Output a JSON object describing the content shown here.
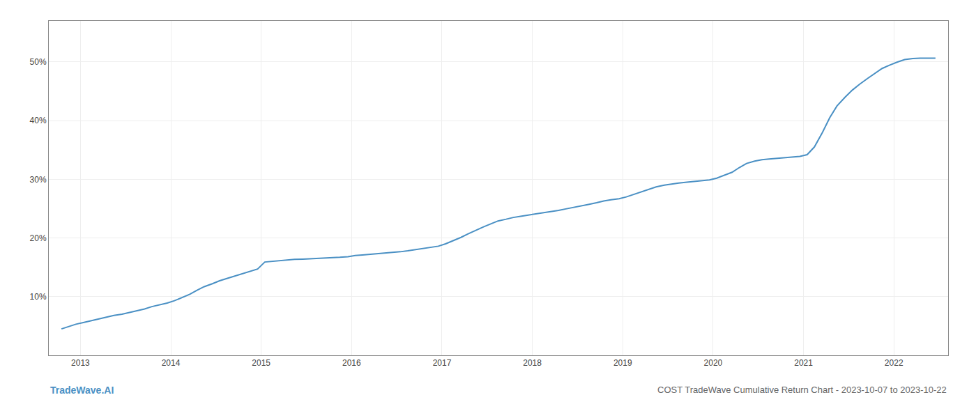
{
  "chart_data": {
    "type": "line",
    "title": "COST TradeWave Cumulative Return Chart - 2023-10-07 to 2023-10-22",
    "annotations": [
      "TradeWave.AI"
    ],
    "color": "#4a90c4",
    "grid": true,
    "x": [
      2012.79,
      2012.87,
      2012.95,
      2013.04,
      2013.12,
      2013.21,
      2013.29,
      2013.37,
      2013.46,
      2013.54,
      2013.62,
      2013.71,
      2013.79,
      2013.87,
      2013.96,
      2014.04,
      2014.12,
      2014.21,
      2014.29,
      2014.37,
      2014.46,
      2014.54,
      2014.62,
      2014.71,
      2014.79,
      2014.87,
      2014.96,
      2015.04,
      2015.12,
      2015.21,
      2015.29,
      2015.37,
      2015.46,
      2015.54,
      2015.62,
      2015.71,
      2015.79,
      2015.87,
      2015.96,
      2016.04,
      2016.12,
      2016.21,
      2016.29,
      2016.37,
      2016.46,
      2016.54,
      2016.62,
      2016.71,
      2016.79,
      2016.87,
      2016.96,
      2017.04,
      2017.12,
      2017.21,
      2017.29,
      2017.37,
      2017.46,
      2017.54,
      2017.62,
      2017.71,
      2017.79,
      2017.87,
      2017.96,
      2018.04,
      2018.12,
      2018.21,
      2018.29,
      2018.37,
      2018.46,
      2018.54,
      2018.62,
      2018.71,
      2018.79,
      2018.87,
      2018.96,
      2019.04,
      2019.12,
      2019.21,
      2019.29,
      2019.37,
      2019.46,
      2019.54,
      2019.62,
      2019.71,
      2019.79,
      2019.87,
      2019.96,
      2020.04,
      2020.12,
      2020.21,
      2020.29,
      2020.37,
      2020.46,
      2020.54,
      2020.62,
      2020.71,
      2020.79,
      2020.87,
      2020.96,
      2021.04,
      2021.12,
      2021.21,
      2021.29,
      2021.37,
      2021.46,
      2021.54,
      2021.62,
      2021.71,
      2021.79,
      2021.87,
      2021.96,
      2022.04,
      2022.12,
      2022.21,
      2022.29,
      2022.37,
      2022.46
    ],
    "values": [
      4.5,
      4.9,
      5.3,
      5.6,
      5.9,
      6.2,
      6.5,
      6.8,
      7.0,
      7.3,
      7.6,
      7.9,
      8.3,
      8.6,
      8.9,
      9.3,
      9.8,
      10.4,
      11.1,
      11.7,
      12.2,
      12.7,
      13.1,
      13.5,
      13.9,
      14.3,
      14.7,
      15.9,
      16.0,
      16.2,
      16.3,
      16.35,
      16.4,
      16.45,
      16.5,
      16.55,
      16.6,
      16.7,
      16.8,
      17.0,
      17.1,
      17.2,
      17.3,
      17.4,
      17.55,
      17.65,
      17.8,
      18.0,
      18.2,
      18.4,
      18.6,
      19.0,
      19.5,
      20.1,
      20.7,
      21.3,
      21.9,
      22.4,
      22.9,
      23.2,
      23.5,
      23.7,
      23.9,
      24.1,
      24.3,
      24.5,
      24.7,
      24.95,
      25.2,
      25.45,
      25.7,
      26.0,
      26.3,
      26.5,
      26.7,
      27.0,
      27.4,
      27.9,
      28.3,
      28.7,
      29.0,
      29.2,
      29.35,
      29.5,
      29.6,
      29.75,
      29.9,
      30.2,
      30.7,
      31.2,
      32.0,
      32.7,
      33.1,
      33.35,
      33.45,
      33.55,
      33.65,
      33.75,
      33.9,
      34.2,
      35.5,
      38.0,
      40.5,
      42.5,
      44.0,
      45.2,
      46.2,
      47.2,
      48.1,
      48.9,
      49.5,
      50.0,
      50.4,
      50.6,
      50.65,
      50.65,
      50.65
    ],
    "xlim": [
      2012.65,
      2022.6
    ],
    "xticks": [
      2013,
      2014,
      2015,
      2016,
      2017,
      2018,
      2019,
      2020,
      2021,
      2022
    ],
    "ylim": [
      0,
      57
    ],
    "yticks": [
      {
        "value": 10,
        "label": "10%"
      },
      {
        "value": 20,
        "label": "20%"
      },
      {
        "value": 30,
        "label": "30%"
      },
      {
        "value": 40,
        "label": "40%"
      },
      {
        "value": 50,
        "label": "50%"
      }
    ]
  }
}
